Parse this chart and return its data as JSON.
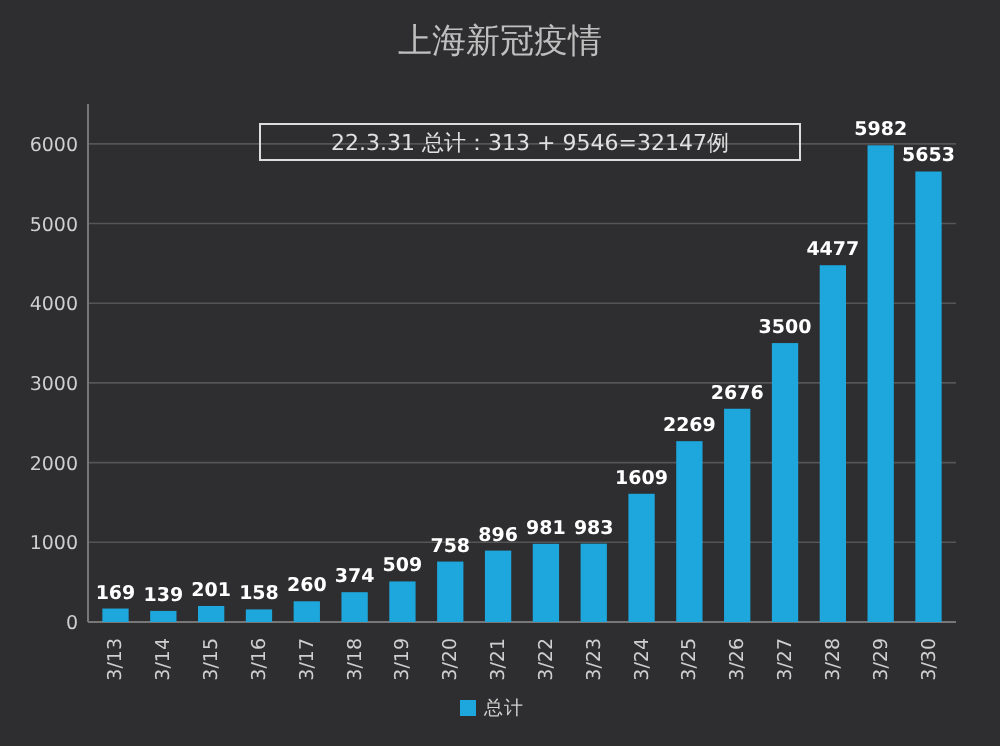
{
  "chart_data": {
    "type": "bar",
    "title": "上海新冠疫情",
    "categories": [
      "3/13",
      "3/14",
      "3/15",
      "3/16",
      "3/17",
      "3/18",
      "3/19",
      "3/20",
      "3/21",
      "3/22",
      "3/23",
      "3/24",
      "3/25",
      "3/26",
      "3/27",
      "3/28",
      "3/29",
      "3/30"
    ],
    "series": [
      {
        "name": "总计",
        "color": "#1ea7dc",
        "values": [
          169,
          139,
          201,
          158,
          260,
          374,
          509,
          758,
          896,
          981,
          983,
          1609,
          2269,
          2676,
          3500,
          4477,
          5982,
          5653
        ]
      }
    ],
    "ylim": [
      0,
      6500
    ],
    "yticks": [
      0,
      1000,
      2000,
      3000,
      4000,
      5000,
      6000
    ],
    "grid": "y",
    "legend": "bottom",
    "data_labels": true,
    "annotations": [
      "22.3.31 总计：313 + 9546=32147例"
    ]
  }
}
